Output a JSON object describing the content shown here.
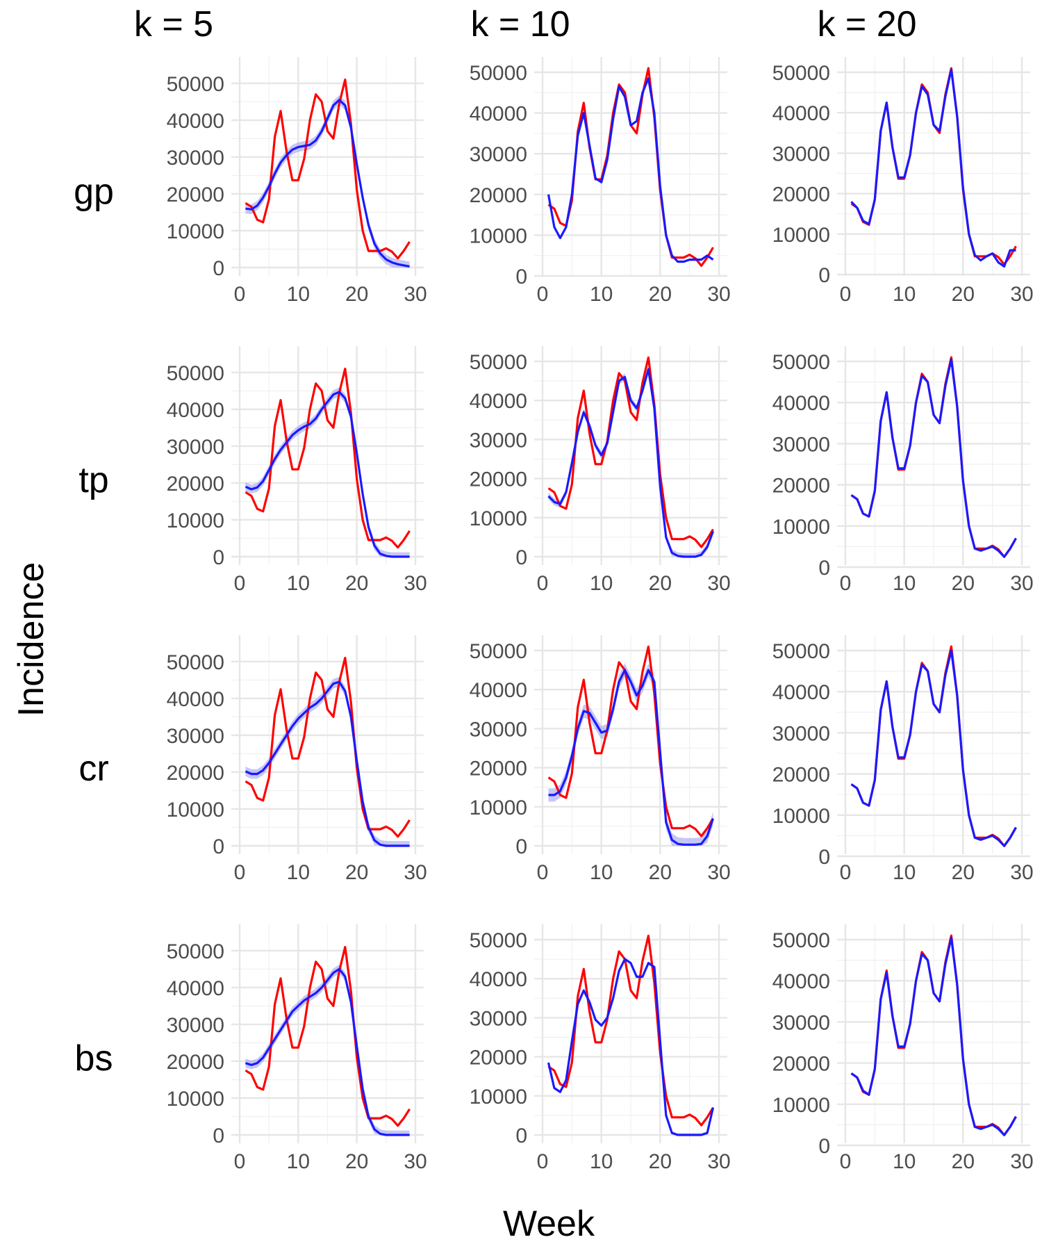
{
  "figure": {
    "col_headers": [
      "k = 5",
      "k = 10",
      "k = 20"
    ],
    "row_headers": [
      "gp",
      "tp",
      "cr",
      "bs"
    ],
    "xlabel": "Week",
    "ylabel": "Incidence"
  },
  "colors": {
    "observed": "#ff0000",
    "fitted": "#1a1aff",
    "band": "#9999ee"
  },
  "chart_data": {
    "type": "line",
    "layout": "facet-grid",
    "rows": [
      "gp",
      "tp",
      "cr",
      "bs"
    ],
    "cols": [
      "k = 5",
      "k = 10",
      "k = 20"
    ],
    "xlim": [
      0,
      30
    ],
    "x_ticks": [
      0,
      10,
      20,
      30
    ],
    "y_ticks": [
      0,
      10000,
      20000,
      30000,
      40000,
      50000
    ],
    "x": [
      1,
      2,
      3,
      4,
      5,
      6,
      7,
      8,
      9,
      10,
      11,
      12,
      13,
      14,
      15,
      16,
      17,
      18,
      19,
      20,
      21,
      22,
      23,
      24,
      25,
      26,
      27,
      28,
      29
    ],
    "observed": [
      17500,
      16500,
      13000,
      12300,
      18500,
      35500,
      42500,
      31500,
      23700,
      23700,
      29500,
      40000,
      47000,
      45000,
      37000,
      35000,
      44500,
      51000,
      39000,
      21000,
      10000,
      4500,
      4500,
      4500,
      5200,
      4300,
      2500,
      4500,
      7000
    ],
    "panels": [
      {
        "row": "gp",
        "col": "k = 5",
        "ylim": [
          0,
          53000
        ],
        "fitted": [
          16000,
          15800,
          16800,
          19000,
          22000,
          25500,
          28500,
          30500,
          32000,
          32700,
          33000,
          33300,
          34500,
          37000,
          40500,
          44000,
          45500,
          44000,
          38000,
          28000,
          19000,
          11500,
          6500,
          3800,
          2200,
          1400,
          900,
          600,
          300
        ],
        "band": 1300
      },
      {
        "row": "gp",
        "col": "k = 10",
        "ylim": [
          0,
          50000
        ],
        "fitted": [
          20000,
          12000,
          9300,
          12000,
          20000,
          34500,
          40000,
          32000,
          24000,
          23000,
          28500,
          38500,
          46500,
          44000,
          37000,
          38000,
          45000,
          48500,
          40000,
          22000,
          10000,
          5000,
          3500,
          3500,
          4000,
          4000,
          4000,
          5000,
          4000
        ],
        "band": 300
      },
      {
        "row": "gp",
        "col": "k = 20",
        "ylim": [
          0,
          50000
        ],
        "fitted": [
          18000,
          16500,
          13300,
          12500,
          18500,
          35500,
          42500,
          31500,
          24000,
          24000,
          29500,
          40000,
          46500,
          44500,
          37000,
          35500,
          44000,
          50700,
          39000,
          21500,
          10000,
          4800,
          3500,
          4500,
          5200,
          3000,
          2000,
          6000,
          6000
        ],
        "band": 0
      },
      {
        "row": "tp",
        "col": "k = 5",
        "ylim": [
          0,
          53000
        ],
        "fitted": [
          19000,
          18300,
          18800,
          20500,
          23500,
          26500,
          29000,
          31000,
          33000,
          34300,
          35300,
          36000,
          37500,
          40000,
          42000,
          44000,
          44700,
          43000,
          38000,
          28000,
          17000,
          8000,
          3000,
          800,
          200,
          0,
          0,
          0,
          0
        ],
        "band": 1200
      },
      {
        "row": "tp",
        "col": "k = 10",
        "ylim": [
          0,
          50000
        ],
        "fitted": [
          15500,
          14000,
          13500,
          16500,
          24000,
          32000,
          37000,
          33500,
          28500,
          26000,
          29000,
          37000,
          45000,
          46000,
          40000,
          38000,
          42500,
          48000,
          38000,
          18000,
          5000,
          1000,
          200,
          0,
          0,
          0,
          500,
          2500,
          6500
        ],
        "band": 900
      },
      {
        "row": "tp",
        "col": "k = 20",
        "ylim": [
          0,
          50000
        ],
        "fitted": [
          17500,
          16500,
          13000,
          12300,
          18500,
          35500,
          42500,
          31500,
          24000,
          24000,
          29500,
          40000,
          46500,
          45000,
          37000,
          35000,
          44000,
          50500,
          39000,
          21000,
          10000,
          4500,
          4000,
          4500,
          5000,
          4000,
          2500,
          4500,
          7000
        ],
        "band": 0
      },
      {
        "row": "cr",
        "col": "k = 5",
        "ylim": [
          0,
          53000
        ],
        "fitted": [
          20200,
          19500,
          19500,
          20500,
          22500,
          25000,
          27500,
          30000,
          32500,
          34500,
          36000,
          37500,
          38500,
          40000,
          42000,
          44000,
          44500,
          42000,
          35000,
          23000,
          12000,
          5000,
          1500,
          300,
          0,
          0,
          0,
          0,
          0
        ],
        "band": 1300
      },
      {
        "row": "cr",
        "col": "k = 10",
        "ylim": [
          0,
          50000
        ],
        "fitted": [
          13000,
          13000,
          14000,
          17500,
          23000,
          30000,
          34500,
          34000,
          31500,
          29000,
          29500,
          35000,
          42000,
          45000,
          42000,
          38500,
          41000,
          45000,
          42000,
          24000,
          6000,
          1500,
          500,
          300,
          300,
          300,
          500,
          2500,
          7000
        ],
        "band": 1700
      },
      {
        "row": "cr",
        "col": "k = 20",
        "ylim": [
          0,
          50000
        ],
        "fitted": [
          17500,
          16500,
          13000,
          12300,
          18500,
          35500,
          42500,
          31500,
          24000,
          24000,
          29500,
          40000,
          46500,
          45000,
          37000,
          35000,
          44000,
          50000,
          39000,
          21000,
          10000,
          4500,
          4000,
          4500,
          5000,
          4000,
          2500,
          4500,
          7000
        ],
        "band": 0
      },
      {
        "row": "bs",
        "col": "k = 5",
        "ylim": [
          0,
          53000
        ],
        "fitted": [
          19500,
          19000,
          19500,
          21000,
          23500,
          26000,
          28500,
          31000,
          33500,
          35000,
          36500,
          37500,
          38500,
          40000,
          42000,
          44000,
          45000,
          43000,
          36000,
          24000,
          12500,
          5000,
          1500,
          300,
          0,
          0,
          0,
          0,
          0
        ],
        "band": 1200
      },
      {
        "row": "bs",
        "col": "k = 10",
        "ylim": [
          0,
          50000
        ],
        "fitted": [
          18500,
          12000,
          11000,
          14000,
          24000,
          33500,
          37000,
          34000,
          29500,
          28000,
          30000,
          35000,
          42000,
          45000,
          44000,
          40500,
          40500,
          44000,
          43000,
          24000,
          5000,
          500,
          0,
          0,
          0,
          0,
          0,
          500,
          7000
        ],
        "band": 400
      },
      {
        "row": "bs",
        "col": "k = 20",
        "ylim": [
          0,
          50000
        ],
        "fitted": [
          17500,
          16500,
          13300,
          12300,
          18500,
          35500,
          42000,
          31500,
          24000,
          24000,
          29500,
          40000,
          46500,
          45000,
          37000,
          35000,
          44000,
          50500,
          39000,
          21000,
          10000,
          4500,
          4000,
          4500,
          5000,
          4000,
          2500,
          4500,
          7000
        ],
        "band": 0
      }
    ]
  }
}
